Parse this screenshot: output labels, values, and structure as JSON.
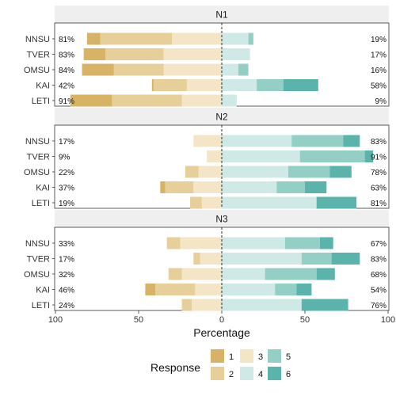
{
  "chart_data": {
    "type": "bar",
    "subtype": "diverging-stacked-likert",
    "xlabel": "Percentage",
    "xlim": [
      -100,
      100
    ],
    "xticks": [
      -100,
      -50,
      0,
      50,
      100
    ],
    "xtick_labels": [
      "100",
      "50",
      "0",
      "50",
      "100"
    ],
    "legend": {
      "title": "Response",
      "position": "bottom",
      "levels": [
        "1",
        "2",
        "3",
        "4",
        "5",
        "6"
      ]
    },
    "colors": {
      "1": "#D8B365",
      "2": "#E6CF98",
      "3": "#F5E5C7",
      "4": "#CFEAE6",
      "5": "#93CFC4",
      "6": "#5AB4AC",
      "panel_strip": "#EFEFEF",
      "center_line": "#000000"
    },
    "panels": [
      {
        "title": "N1",
        "rows": [
          {
            "name": "NNSU",
            "low_label": "81%",
            "high_label": "19%",
            "values": [
              8,
              43,
              30,
              16,
              3,
              0
            ]
          },
          {
            "name": "TVER",
            "low_label": "83%",
            "high_label": "17%",
            "values": [
              13,
              35,
              35,
              17,
              0,
              0
            ]
          },
          {
            "name": "OMSU",
            "low_label": "84%",
            "high_label": "16%",
            "values": [
              19,
              30,
              35,
              10,
              6,
              0
            ]
          },
          {
            "name": "KAI",
            "low_label": "42%",
            "high_label": "58%",
            "values": [
              1,
              20,
              21,
              21,
              16,
              21
            ]
          },
          {
            "name": "LETI",
            "low_label": "91%",
            "high_label": "9%",
            "values": [
              25,
              42,
              24,
              9,
              0,
              0
            ]
          }
        ]
      },
      {
        "title": "N2",
        "rows": [
          {
            "name": "NNSU",
            "low_label": "17%",
            "high_label": "83%",
            "values": [
              0,
              0,
              17,
              42,
              31,
              10
            ]
          },
          {
            "name": "TVER",
            "low_label": "9%",
            "high_label": "91%",
            "values": [
              0,
              0,
              9,
              47,
              39,
              5
            ]
          },
          {
            "name": "OMSU",
            "low_label": "22%",
            "high_label": "78%",
            "values": [
              0,
              8,
              14,
              40,
              25,
              13
            ]
          },
          {
            "name": "KAI",
            "low_label": "37%",
            "high_label": "63%",
            "values": [
              3,
              17,
              17,
              33,
              17,
              13
            ]
          },
          {
            "name": "LETI",
            "low_label": "19%",
            "high_label": "81%",
            "values": [
              0,
              7,
              12,
              57,
              0,
              24
            ]
          }
        ]
      },
      {
        "title": "N3",
        "rows": [
          {
            "name": "NNSU",
            "low_label": "33%",
            "high_label": "67%",
            "values": [
              0,
              8,
              25,
              38,
              21,
              8
            ]
          },
          {
            "name": "TVER",
            "low_label": "17%",
            "high_label": "83%",
            "values": [
              0,
              4,
              13,
              48,
              18,
              17
            ]
          },
          {
            "name": "OMSU",
            "low_label": "32%",
            "high_label": "68%",
            "values": [
              0,
              8,
              24,
              26,
              31,
              11
            ]
          },
          {
            "name": "KAI",
            "low_label": "46%",
            "high_label": "54%",
            "values": [
              6,
              24,
              16,
              32,
              13,
              9
            ]
          },
          {
            "name": "LETI",
            "low_label": "24%",
            "high_label": "76%",
            "values": [
              0,
              6,
              18,
              48,
              0,
              28
            ]
          }
        ]
      }
    ]
  }
}
